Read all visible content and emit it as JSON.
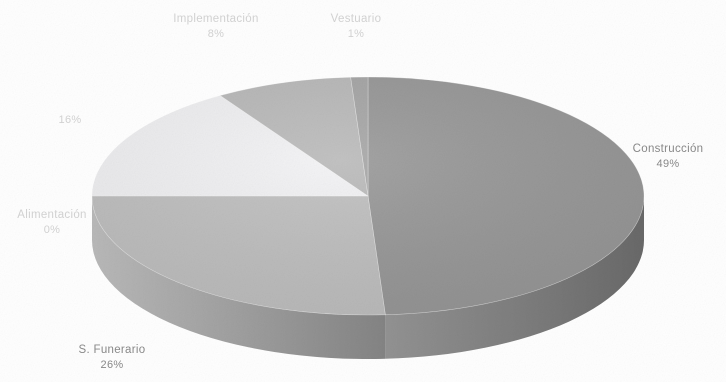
{
  "chart_data": {
    "type": "pie",
    "style": "3d",
    "title": "",
    "legend": "none",
    "start_angle_deg": 90,
    "direction": "clockwise",
    "slices": [
      {
        "label": "Construcción",
        "value": 49,
        "value_label": "49%",
        "color": "#9a9a9a"
      },
      {
        "label": "S. Funerario",
        "value": 26,
        "value_label": "26%",
        "color": "#c2c2c2"
      },
      {
        "label": "Alimentación",
        "value": 0,
        "value_label": "0%",
        "color": "#bdbdbd",
        "faint": true
      },
      {
        "label": "",
        "value": 16,
        "value_label": "16%",
        "color": "#f4f4f6",
        "faint": true
      },
      {
        "label": "Implementación",
        "value": 8,
        "value_label": "8%",
        "color": "#bcbcbc",
        "faint": true
      },
      {
        "label": "Vestuario",
        "value": 1,
        "value_label": "1%",
        "color": "#a8a8a8",
        "faint": true
      }
    ]
  }
}
